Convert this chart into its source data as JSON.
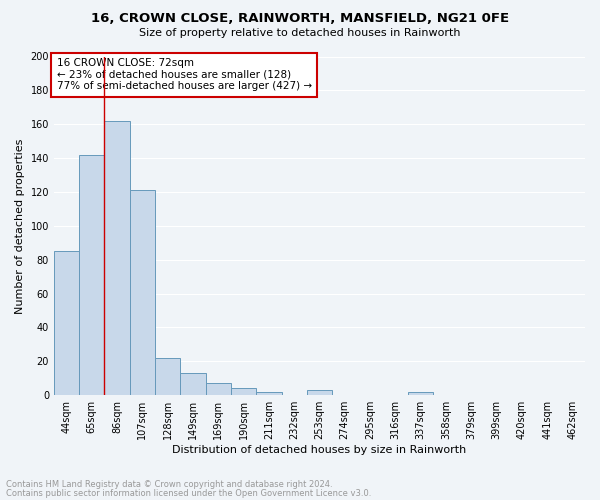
{
  "title1": "16, CROWN CLOSE, RAINWORTH, MANSFIELD, NG21 0FE",
  "title2": "Size of property relative to detached houses in Rainworth",
  "xlabel": "Distribution of detached houses by size in Rainworth",
  "ylabel": "Number of detached properties",
  "bar_labels": [
    "44sqm",
    "65sqm",
    "86sqm",
    "107sqm",
    "128sqm",
    "149sqm",
    "169sqm",
    "190sqm",
    "211sqm",
    "232sqm",
    "253sqm",
    "274sqm",
    "295sqm",
    "316sqm",
    "337sqm",
    "358sqm",
    "379sqm",
    "399sqm",
    "420sqm",
    "441sqm",
    "462sqm"
  ],
  "bar_values": [
    85,
    142,
    162,
    121,
    22,
    13,
    7,
    4,
    2,
    0,
    3,
    0,
    0,
    0,
    2,
    0,
    0,
    0,
    0,
    0,
    0
  ],
  "bar_color": "#c8d8ea",
  "bar_edge_color": "#6699bb",
  "annotation_text": "16 CROWN CLOSE: 72sqm\n← 23% of detached houses are smaller (128)\n77% of semi-detached houses are larger (427) →",
  "annotation_box_color": "#ffffff",
  "annotation_box_edge": "#cc0000",
  "red_line_x": 1.5,
  "ylim": [
    0,
    200
  ],
  "yticks": [
    0,
    20,
    40,
    60,
    80,
    100,
    120,
    140,
    160,
    180,
    200
  ],
  "footer_text1": "Contains HM Land Registry data © Crown copyright and database right 2024.",
  "footer_text2": "Contains public sector information licensed under the Open Government Licence v3.0.",
  "background_color": "#f0f4f8",
  "grid_color": "#ffffff",
  "title_fontsize": 9.5,
  "subtitle_fontsize": 8,
  "ylabel_fontsize": 8,
  "xlabel_fontsize": 8,
  "tick_fontsize": 7,
  "annotation_fontsize": 7.5,
  "footer_fontsize": 6
}
